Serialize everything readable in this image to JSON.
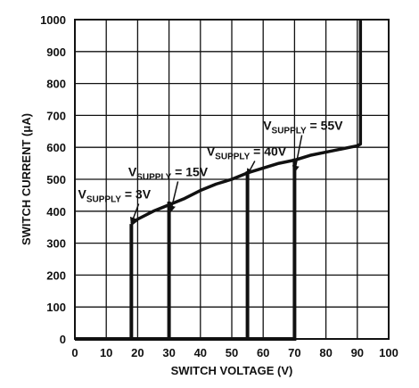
{
  "chart_data": {
    "type": "line",
    "title": "",
    "xlabel": "SWITCH VOLTAGE (V)",
    "ylabel": "SWITCH CURRENT (μA)",
    "xlim": [
      0,
      100
    ],
    "ylim": [
      0,
      1000
    ],
    "x_ticks": [
      "0",
      "10",
      "20",
      "30",
      "40",
      "50",
      "60",
      "70",
      "80",
      "90",
      "100"
    ],
    "y_ticks": [
      "0",
      "100",
      "200",
      "300",
      "400",
      "500",
      "600",
      "700",
      "800",
      "900",
      "1000"
    ],
    "grid": true,
    "envelope": {
      "x": [
        18,
        20,
        25,
        30,
        35,
        40,
        45,
        50,
        55,
        60,
        65,
        70,
        75,
        80,
        85,
        90,
        91,
        91
      ],
      "y": [
        360,
        375,
        400,
        420,
        440,
        465,
        485,
        500,
        520,
        535,
        550,
        560,
        575,
        585,
        595,
        605,
        610,
        1000
      ]
    },
    "series": [
      {
        "name": "3V",
        "x": [
          0,
          18,
          18
        ],
        "y": [
          0,
          0,
          360
        ]
      },
      {
        "name": "15V",
        "x": [
          0,
          30,
          30
        ],
        "y": [
          0,
          0,
          430
        ]
      },
      {
        "name": "40V",
        "x": [
          0,
          55,
          55
        ],
        "y": [
          0,
          0,
          525
        ]
      },
      {
        "name": "55V",
        "x": [
          0,
          70,
          70
        ],
        "y": [
          0,
          0,
          565
        ]
      }
    ],
    "annotations": [
      {
        "main": "V",
        "sub": "SUPPLY",
        "rest": " = 3V",
        "x": 1,
        "y": 440,
        "arrow_to": [
          17.5,
          358
        ]
      },
      {
        "main": "V",
        "sub": "SUPPLY",
        "rest": " = 15V",
        "x": 17,
        "y": 510,
        "arrow_to": [
          30,
          395
        ]
      },
      {
        "main": "V",
        "sub": "SUPPLY",
        "rest": " = 40V",
        "x": 42,
        "y": 574,
        "arrow_to": [
          54.5,
          510
        ]
      },
      {
        "main": "V",
        "sub": "SUPPLY",
        "rest": " = 55V",
        "x": 60,
        "y": 655,
        "arrow_to": [
          69.5,
          520
        ]
      }
    ]
  }
}
